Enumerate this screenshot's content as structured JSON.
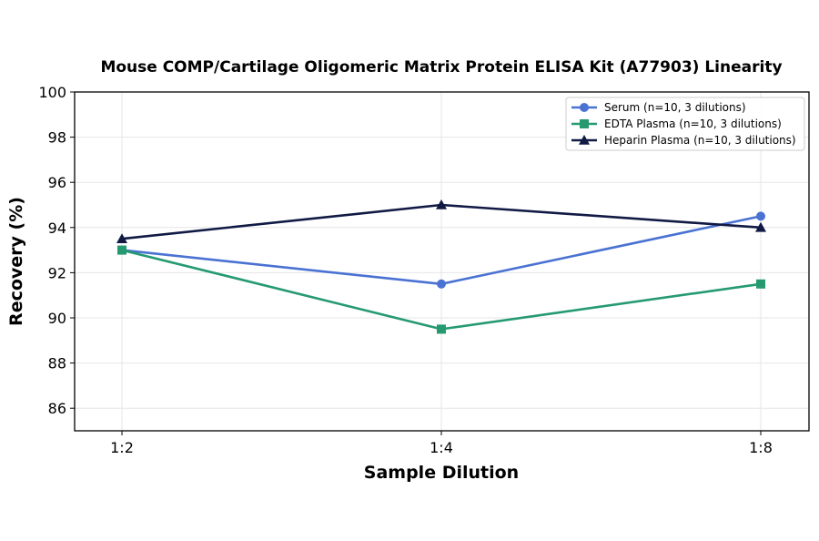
{
  "chart_data": {
    "type": "line",
    "title": "Mouse COMP/Cartilage Oligomeric Matrix Protein ELISA Kit (A77903) Linearity",
    "xlabel": "Sample Dilution",
    "ylabel": "Recovery (%)",
    "categories": [
      "1:2",
      "1:4",
      "1:8"
    ],
    "ylim": [
      85,
      100
    ],
    "yticks": [
      86,
      88,
      90,
      92,
      94,
      96,
      98,
      100
    ],
    "grid": true,
    "legend_position": "top-right",
    "series": [
      {
        "name": "Serum (n=10, 3 dilutions)",
        "values": [
          93.0,
          91.5,
          94.5
        ],
        "color": "#4a72d2",
        "marker": "circle"
      },
      {
        "name": "EDTA Plasma (n=10, 3 dilutions)",
        "values": [
          93.0,
          89.5,
          91.5
        ],
        "color": "#259a70",
        "marker": "square"
      },
      {
        "name": "Heparin Plasma (n=10, 3 dilutions)",
        "values": [
          93.5,
          95.0,
          94.0
        ],
        "color": "#111a44",
        "marker": "triangle"
      }
    ]
  }
}
